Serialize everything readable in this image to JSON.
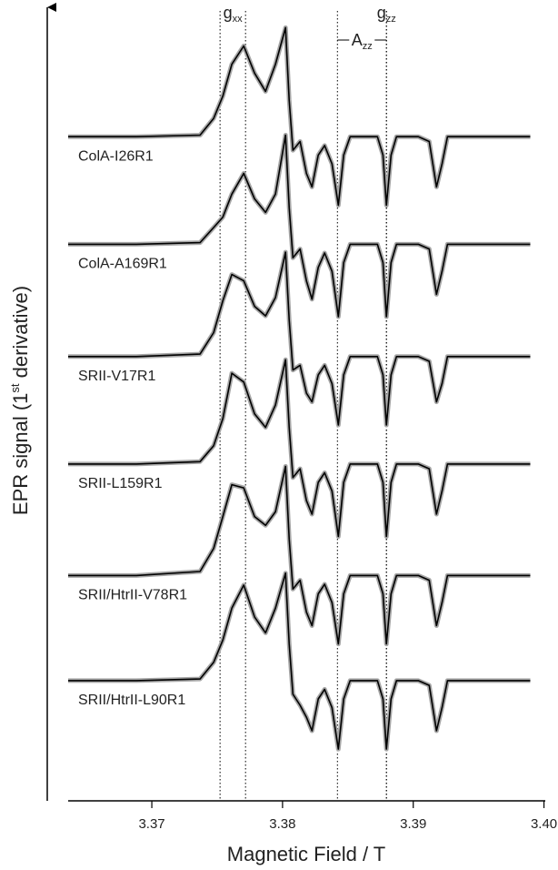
{
  "chart_data": {
    "type": "line",
    "xlabel": "Magnetic Field / T",
    "ylabel": [
      "EPR signal (1",
      "st",
      " derivative)"
    ],
    "xlim": [
      3.3636,
      3.4001
    ],
    "ylim": [
      0,
      100
    ],
    "xticks": [
      3.37,
      3.38,
      3.39,
      {
        "value": 3.4,
        "label": "3.40"
      }
    ],
    "x": [
      3.3636,
      3.36882,
      3.37369,
      3.37473,
      3.37543,
      3.37612,
      3.37703,
      3.37786,
      3.3787,
      3.37946,
      3.38023,
      3.38051,
      3.38079,
      3.38134,
      3.38183,
      3.38225,
      3.38273,
      3.38322,
      3.38378,
      3.38427,
      3.38468,
      3.38517,
      3.38621,
      3.38726,
      3.38768,
      3.38795,
      3.3883,
      3.38872,
      3.39039,
      3.39122,
      3.39178,
      3.3922,
      3.39262,
      3.39457,
      3.39895
    ],
    "line_color": "#000000",
    "fit_color": "#a6a6a6",
    "series": [
      {
        "name": "ColA-I26R1",
        "values": [
          83.4,
          83.4,
          83.6,
          85.7,
          88.5,
          92.5,
          94.8,
          91.4,
          89.1,
          92.5,
          97.1,
          88,
          81.7,
          82.8,
          78.8,
          77.1,
          81.1,
          82.3,
          80,
          74.8,
          81.1,
          83.4,
          83.4,
          83.4,
          81.1,
          74.8,
          81.1,
          83.4,
          83.4,
          82.8,
          77.1,
          80,
          83.4,
          83.4,
          83.4
        ]
      },
      {
        "name": "ColA-A169R1",
        "values": [
          69.9,
          69.9,
          70.1,
          72,
          73.3,
          76.2,
          78.8,
          75.6,
          73.9,
          76.2,
          83.6,
          74.5,
          68.2,
          69.3,
          65.3,
          63,
          67,
          68.8,
          66.5,
          60.8,
          67.6,
          69.9,
          69.9,
          69.9,
          67.6,
          60.8,
          67.6,
          69.9,
          69.9,
          69.3,
          63.6,
          66.5,
          69.9,
          69.9,
          69.9
        ]
      },
      {
        "name": "SRII-V17R1",
        "values": [
          55.8,
          55.8,
          56.1,
          58.8,
          62.8,
          66.1,
          65.3,
          62.1,
          60.9,
          63.2,
          68.9,
          60.4,
          54.1,
          54.7,
          51.2,
          50.1,
          53.5,
          54.7,
          52.4,
          47.2,
          53.5,
          55.8,
          55.8,
          55.8,
          53.5,
          47.2,
          53.5,
          55.8,
          55.8,
          55.2,
          50.1,
          52.4,
          55.8,
          55.8,
          55.8
        ]
      },
      {
        "name": "SRII-L159R1",
        "values": [
          42.3,
          42.3,
          42.6,
          44.6,
          48,
          53.7,
          52.6,
          48.6,
          46.9,
          49.7,
          55.4,
          46.9,
          40.6,
          41.7,
          37.7,
          36,
          40,
          41.2,
          38.9,
          33.2,
          40,
          42.3,
          42.3,
          42.3,
          40,
          33.2,
          40,
          42.3,
          42.3,
          41.7,
          36,
          38.9,
          42.3,
          42.3,
          42.3
        ]
      },
      {
        "name": "SRII/HtrII-V78R1",
        "values": [
          28.3,
          28.3,
          28.8,
          31.7,
          35.7,
          39.7,
          39.3,
          35.7,
          34.6,
          36.3,
          42,
          32.9,
          26.6,
          27.7,
          23.7,
          22,
          26,
          27.2,
          24.9,
          19.7,
          26,
          28.3,
          28.3,
          28.3,
          26,
          19.7,
          26,
          28.3,
          28.3,
          27.7,
          22,
          24.9,
          28.3,
          28.3,
          28.3
        ]
      },
      {
        "name": "SRII/HtrII-L90R1",
        "values": [
          15.1,
          15.1,
          15.3,
          17.4,
          20.2,
          24.2,
          27.1,
          23.1,
          21.1,
          24.2,
          28.6,
          19.7,
          13.4,
          12,
          10.5,
          8.8,
          12.8,
          14,
          11.7,
          6.5,
          12.8,
          15.1,
          15.1,
          15.1,
          12.8,
          6.5,
          12.8,
          15.1,
          15.1,
          14.5,
          8.8,
          11.7,
          15.1,
          15.1,
          15.1
        ]
      }
    ],
    "annotations": [
      {
        "label": "g",
        "sub": "xx",
        "x": [
          3.37522,
          3.37717
        ]
      },
      {
        "label": "A",
        "sub": "zz",
        "x": [
          3.3842,
          3.38795
        ]
      },
      {
        "label": "g",
        "sub": "zz",
        "x": [
          3.38795
        ]
      }
    ]
  }
}
